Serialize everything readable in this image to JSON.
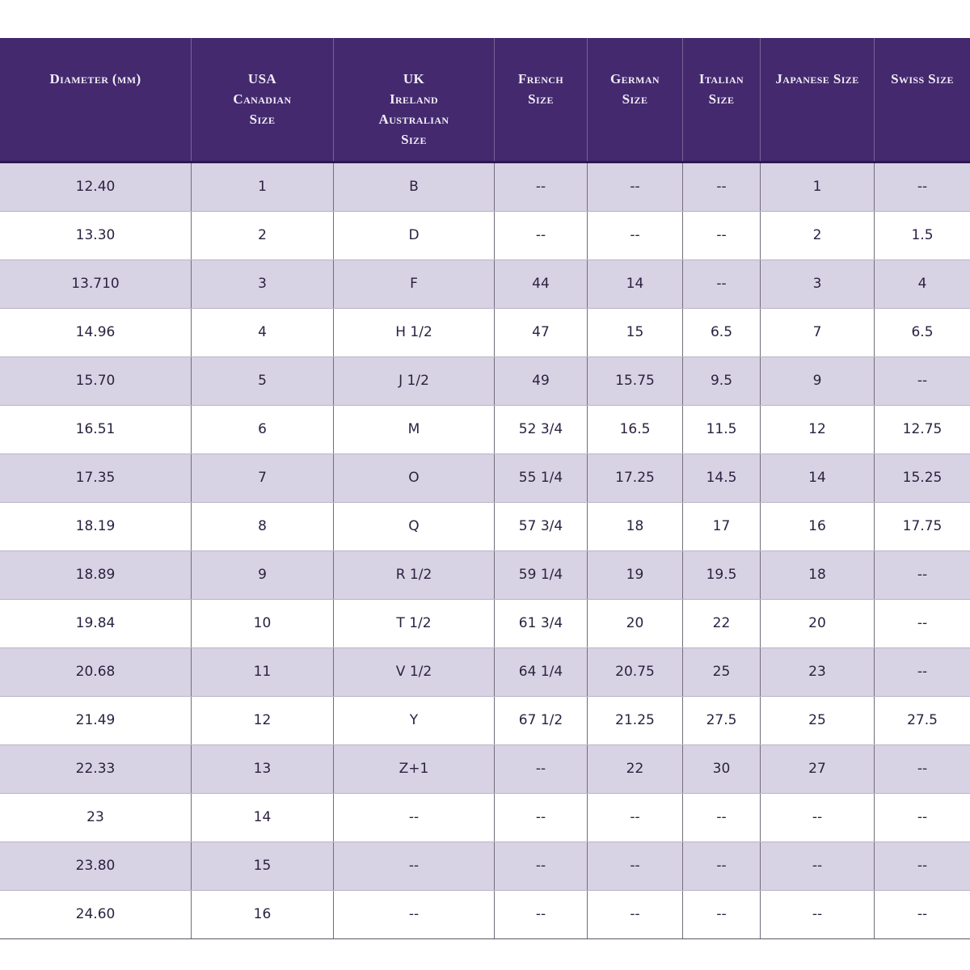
{
  "colors": {
    "header_bg": "#44296e",
    "header_text": "#f2edf8",
    "row_alt_bg": "#d8d3e4",
    "row_bg": "#ffffff",
    "body_text": "#2b2140",
    "grid_vertical": "#726c7c",
    "grid_horizontal": "#b9b4c4"
  },
  "chart_data": {
    "type": "table",
    "columns": [
      "Diameter (mm)",
      "USA Canadian Size",
      "UK Ireland Australian Size",
      "French Size",
      "German Size",
      "Italian Size",
      "Japanese Size",
      "Swiss Size"
    ],
    "header_lines": [
      [
        "Diameter (mm)"
      ],
      [
        "USA",
        "Canadian",
        "Size"
      ],
      [
        "UK",
        "Ireland",
        "Australian",
        "Size"
      ],
      [
        "French",
        "Size"
      ],
      [
        "German",
        "Size"
      ],
      [
        "Italian",
        "Size"
      ],
      [
        "Japanese Size"
      ],
      [
        "Swiss Size"
      ]
    ],
    "rows": [
      [
        "12.40",
        "1",
        "B",
        "--",
        "--",
        "--",
        "1",
        "--"
      ],
      [
        "13.30",
        "2",
        "D",
        "--",
        "--",
        "--",
        "2",
        "1.5"
      ],
      [
        "13.710",
        "3",
        "F",
        "44",
        "14",
        "--",
        "3",
        "4"
      ],
      [
        "14.96",
        "4",
        "H 1/2",
        "47",
        "15",
        "6.5",
        "7",
        "6.5"
      ],
      [
        "15.70",
        "5",
        "J 1/2",
        "49",
        "15.75",
        "9.5",
        "9",
        "--"
      ],
      [
        "16.51",
        "6",
        "M",
        "52 3/4",
        "16.5",
        "11.5",
        "12",
        "12.75"
      ],
      [
        "17.35",
        "7",
        "O",
        "55 1/4",
        "17.25",
        "14.5",
        "14",
        "15.25"
      ],
      [
        "18.19",
        "8",
        "Q",
        "57 3/4",
        "18",
        "17",
        "16",
        "17.75"
      ],
      [
        "18.89",
        "9",
        "R 1/2",
        "59 1/4",
        "19",
        "19.5",
        "18",
        "--"
      ],
      [
        "19.84",
        "10",
        "T 1/2",
        "61 3/4",
        "20",
        "22",
        "20",
        "--"
      ],
      [
        "20.68",
        "11",
        "V 1/2",
        "64 1/4",
        "20.75",
        "25",
        "23",
        "--"
      ],
      [
        "21.49",
        "12",
        "Y",
        "67 1/2",
        "21.25",
        "27.5",
        "25",
        "27.5"
      ],
      [
        "22.33",
        "13",
        "Z+1",
        "--",
        "22",
        "30",
        "27",
        "--"
      ],
      [
        "23",
        "14",
        "--",
        "--",
        "--",
        "--",
        "--",
        "--"
      ],
      [
        "23.80",
        "15",
        "--",
        "--",
        "--",
        "--",
        "--",
        "--"
      ],
      [
        "24.60",
        "16",
        "--",
        "--",
        "--",
        "--",
        "--",
        "--"
      ]
    ]
  }
}
